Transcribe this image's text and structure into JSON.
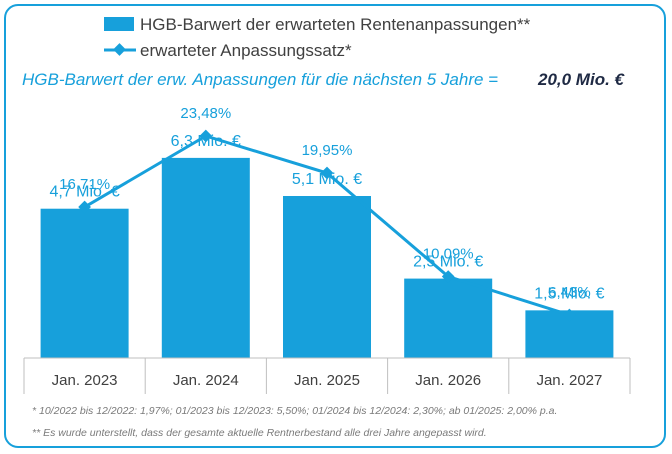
{
  "chart_data": {
    "type": "bar",
    "title": "",
    "categories": [
      "Jan. 2023",
      "Jan. 2024",
      "Jan. 2025",
      "Jan. 2026",
      "Jan. 2027"
    ],
    "series": [
      {
        "name": "HGB-Barwert der erwarteten Rentenanpassungen**",
        "type": "bar",
        "values": [
          4.7,
          6.3,
          5.1,
          2.5,
          1.5
        ],
        "labels": [
          "4,7 Mio. €",
          "6,3 Mio. €",
          "5,1 Mio. €",
          "2,5 Mio. €",
          "1,5 Mio. €"
        ]
      },
      {
        "name": "erwarteter Anpassungssatz*",
        "type": "line",
        "values": [
          16.71,
          23.48,
          19.95,
          10.09,
          6.43
        ],
        "labels": [
          "16,71%",
          "23,48%",
          "19,95%",
          "10,09%",
          "6,43%"
        ]
      }
    ],
    "bar_ylim": [
      0,
      8.5
    ],
    "line_ylim": [
      0,
      25
    ],
    "colors": {
      "bar": "#17a0db",
      "line": "#17a0db",
      "summary_value": "#1f2a44"
    }
  },
  "summary": {
    "label": "HGB-Barwert der erw. Anpassungen für die nächsten 5 Jahre =",
    "value": "20,0 Mio. €"
  },
  "footnotes": [
    "* 10/2022 bis 12/2022: 1,97%; 01/2023 bis 12/2023: 5,50%; 01/2024 bis 12/2024: 2,30%; ab 01/2025: 2,00% p.a.",
    "** Es wurde unterstellt, dass der gesamte aktuelle Rentnerbestand alle drei Jahre angepasst wird."
  ]
}
